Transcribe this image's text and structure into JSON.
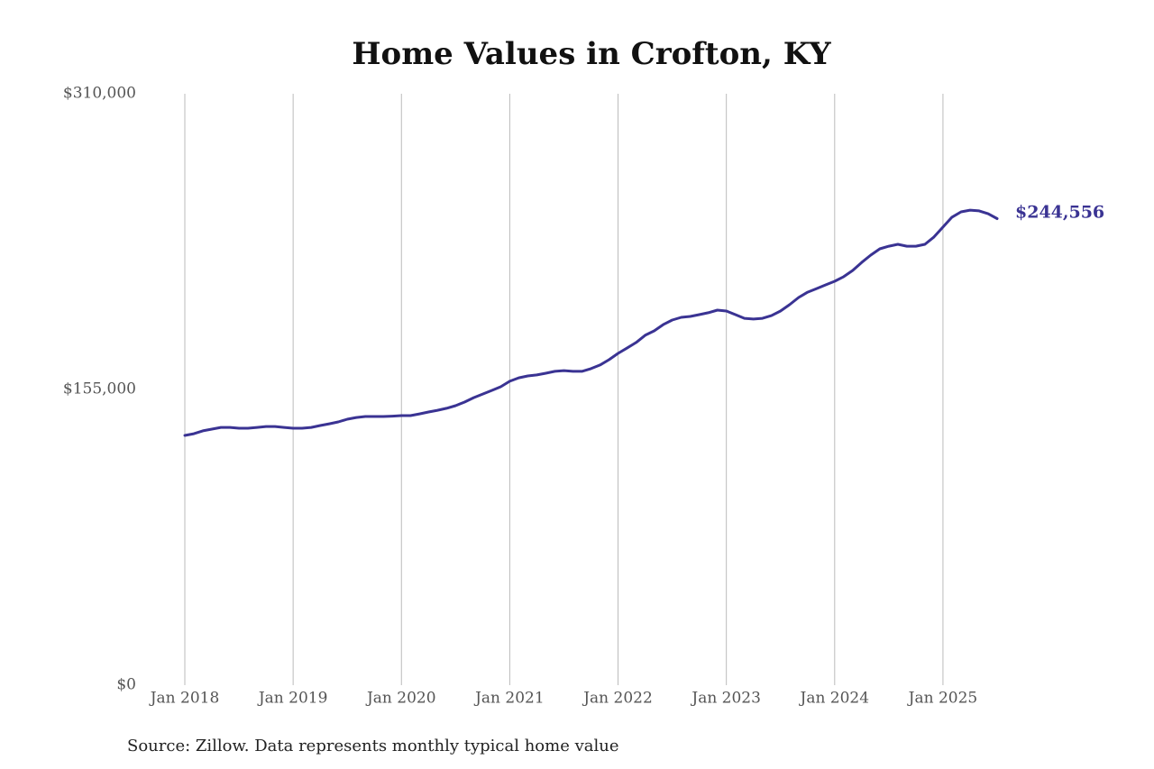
{
  "chart_data": {
    "type": "line",
    "title": "Home Values in Crofton, KY",
    "source": "Source: Zillow. Data represents monthly typical home value",
    "color": "#3a3393",
    "x": [
      "2018-01",
      "2018-02",
      "2018-03",
      "2018-04",
      "2018-05",
      "2018-06",
      "2018-07",
      "2018-08",
      "2018-09",
      "2018-10",
      "2018-11",
      "2018-12",
      "2019-01",
      "2019-02",
      "2019-03",
      "2019-04",
      "2019-05",
      "2019-06",
      "2019-07",
      "2019-08",
      "2019-09",
      "2019-10",
      "2019-11",
      "2019-12",
      "2020-01",
      "2020-02",
      "2020-03",
      "2020-04",
      "2020-05",
      "2020-06",
      "2020-07",
      "2020-08",
      "2020-09",
      "2020-10",
      "2020-11",
      "2020-12",
      "2021-01",
      "2021-02",
      "2021-03",
      "2021-04",
      "2021-05",
      "2021-06",
      "2021-07",
      "2021-08",
      "2021-09",
      "2021-10",
      "2021-11",
      "2021-12",
      "2022-01",
      "2022-02",
      "2022-03",
      "2022-04",
      "2022-05",
      "2022-06",
      "2022-07",
      "2022-08",
      "2022-09",
      "2022-10",
      "2022-11",
      "2022-12",
      "2023-01",
      "2023-02",
      "2023-03",
      "2023-04",
      "2023-05",
      "2023-06",
      "2023-07",
      "2023-08",
      "2023-09",
      "2023-10",
      "2023-11",
      "2023-12",
      "2024-01",
      "2024-02",
      "2024-03",
      "2024-04",
      "2024-05",
      "2024-06",
      "2024-07",
      "2024-08",
      "2024-09",
      "2024-10",
      "2024-11",
      "2024-12",
      "2025-01",
      "2025-02",
      "2025-03",
      "2025-04",
      "2025-05",
      "2025-06",
      "2025-07"
    ],
    "values": [
      130900,
      131800,
      133300,
      134200,
      135100,
      135100,
      134700,
      134700,
      135100,
      135600,
      135600,
      135100,
      134700,
      134700,
      135100,
      136100,
      137000,
      138000,
      139400,
      140300,
      140800,
      140800,
      140800,
      141000,
      141300,
      141300,
      142200,
      143200,
      144100,
      145100,
      146500,
      148400,
      150700,
      152600,
      154500,
      156400,
      159300,
      161100,
      162100,
      162600,
      163500,
      164500,
      164900,
      164500,
      164500,
      165900,
      167800,
      170600,
      173900,
      176700,
      179600,
      183400,
      185700,
      189000,
      191400,
      192800,
      193300,
      194200,
      195200,
      196600,
      196100,
      194200,
      192300,
      191900,
      192300,
      193700,
      196100,
      199400,
      203200,
      206000,
      207900,
      209800,
      211700,
      214100,
      217400,
      221600,
      225400,
      228700,
      230100,
      231100,
      230100,
      230100,
      231100,
      234900,
      240100,
      245300,
      248100,
      249000,
      248600,
      247100,
      244556
    ],
    "value_labels": [
      null,
      null,
      null,
      null,
      null,
      null,
      null,
      null,
      null,
      null,
      null,
      null,
      null,
      null,
      null,
      null,
      null,
      null,
      null,
      null,
      null,
      null,
      null,
      null,
      null,
      null,
      null,
      null,
      null,
      null,
      null,
      null,
      null,
      null,
      null,
      null,
      null,
      null,
      null,
      null,
      null,
      null,
      null,
      null,
      null,
      null,
      null,
      null,
      null,
      null,
      null,
      null,
      null,
      null,
      null,
      null,
      null,
      null,
      null,
      null,
      null,
      null,
      null,
      null,
      null,
      null,
      null,
      null,
      null,
      null,
      null,
      null,
      null,
      null,
      null,
      null,
      null,
      null,
      null,
      null,
      null,
      null,
      null,
      null,
      null,
      null,
      null,
      null,
      null,
      null,
      "$244,556"
    ],
    "xlim": [
      "2018-01",
      "2025-07"
    ],
    "xticks": [
      {
        "value": "2018-01",
        "label": "Jan 2018"
      },
      {
        "value": "2019-01",
        "label": "Jan 2019"
      },
      {
        "value": "2020-01",
        "label": "Jan 2020"
      },
      {
        "value": "2021-01",
        "label": "Jan 2021"
      },
      {
        "value": "2022-01",
        "label": "Jan 2022"
      },
      {
        "value": "2023-01",
        "label": "Jan 2023"
      },
      {
        "value": "2024-01",
        "label": "Jan 2024"
      },
      {
        "value": "2025-01",
        "label": "Jan 2025"
      }
    ],
    "ylim": [
      0,
      310000
    ],
    "yticks": [
      {
        "value": 0,
        "label": "$0"
      },
      {
        "value": 155000,
        "label": "$155,000"
      },
      {
        "value": 310000,
        "label": "$310,000"
      }
    ],
    "grid": "x"
  }
}
